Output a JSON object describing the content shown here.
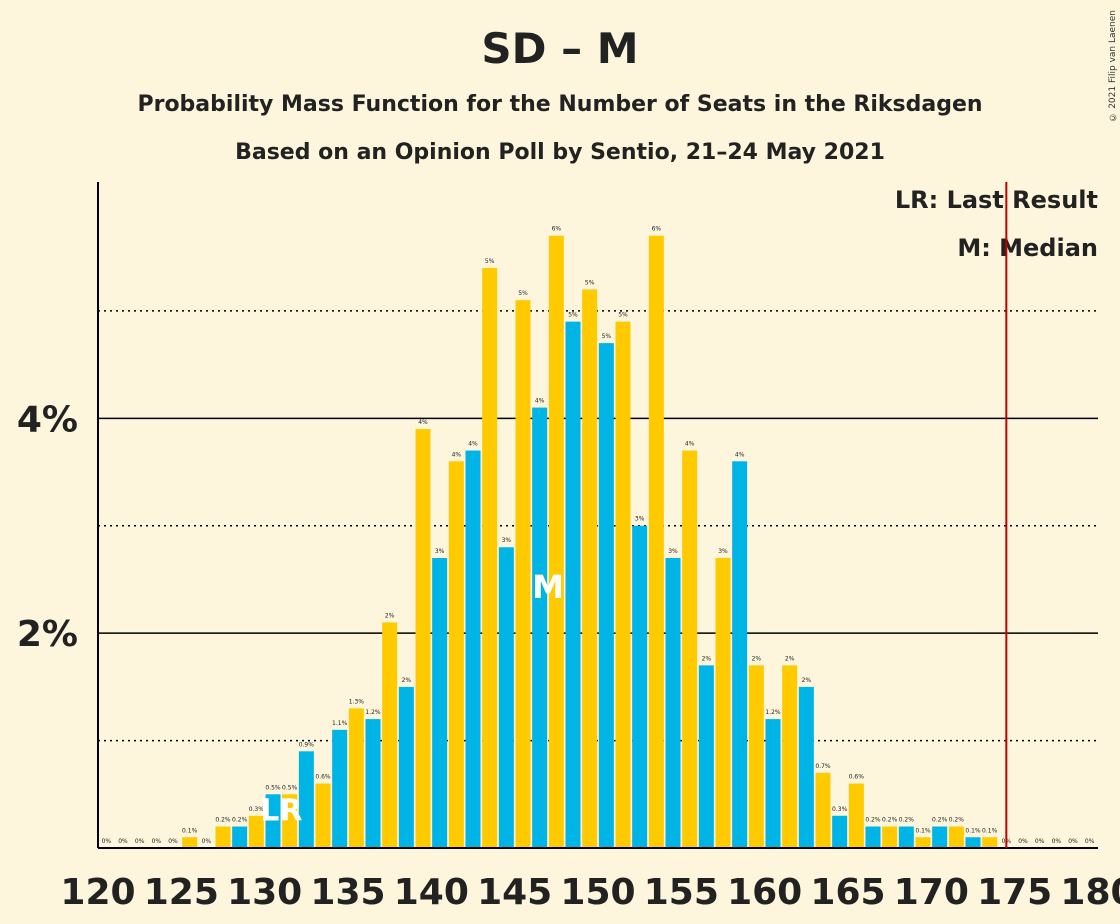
{
  "chart_data": {
    "type": "bar",
    "title": "SD – M",
    "subtitle": "Probability Mass Function for the Number of Seats in the Riksdagen",
    "subtitle2": "Based on an Opinion Poll by Sentio, 21–24 May 2021",
    "copyright": "© 2021 Filip van Laenen",
    "legend": [
      "LR: Last Result",
      "M: Median"
    ],
    "legend_position": "top-right",
    "x": [
      121,
      122,
      123,
      124,
      125,
      126,
      127,
      128,
      129,
      130,
      131,
      132,
      133,
      134,
      135,
      136,
      137,
      138,
      139,
      140,
      141,
      142,
      143,
      144,
      145,
      146,
      147,
      148,
      149,
      150,
      151,
      152,
      153,
      154,
      155,
      156,
      157,
      158,
      159,
      160,
      161,
      162,
      163,
      164,
      165,
      166,
      167,
      168,
      169,
      170,
      171,
      172,
      173,
      174,
      175,
      176,
      177,
      178,
      179,
      180
    ],
    "values": [
      0,
      0,
      0,
      0,
      0,
      0.1,
      0,
      0.2,
      0.2,
      0.3,
      0.5,
      0.5,
      0.9,
      0.6,
      1.1,
      1.3,
      1.2,
      2.1,
      1.5,
      3.9,
      2.7,
      3.6,
      3.7,
      5.4,
      2.8,
      5.1,
      4.1,
      5.7,
      4.9,
      5.2,
      4.7,
      4.9,
      3.0,
      5.7,
      2.7,
      3.7,
      1.7,
      2.7,
      3.6,
      1.7,
      1.2,
      1.7,
      1.5,
      0.7,
      0.3,
      0.6,
      0.2,
      0.2,
      0.2,
      0.1,
      0.2,
      0.2,
      0.1,
      0.1,
      0,
      0,
      0,
      0,
      0,
      0
    ],
    "labels": [
      "0%",
      "0%",
      "0%",
      "0%",
      "0%",
      "0.1%",
      "0%",
      "0.2%",
      "0.2%",
      "0.3%",
      "0.5%",
      "0.5%",
      "0.9%",
      "0.6%",
      "1.1%",
      "1.3%",
      "1.2%",
      "2%",
      "2%",
      "4%",
      "3%",
      "4%",
      "4%",
      "5%",
      "3%",
      "5%",
      "4%",
      "6%",
      "5%",
      "5%",
      "5%",
      "5%",
      "3%",
      "6%",
      "3%",
      "4%",
      "2%",
      "3%",
      "4%",
      "2%",
      "1.2%",
      "2%",
      "2%",
      "0.7%",
      "0.3%",
      "0.6%",
      "0.2%",
      "0.2%",
      "0.2%",
      "0.1%",
      "0.2%",
      "0.2%",
      "0.1%",
      "0.1%",
      "0%",
      "0%",
      "0%",
      "0%",
      "0%",
      "0%"
    ],
    "series_colors": [
      "#00b4e6",
      "#ffca00"
    ],
    "x_ticks": [
      120,
      125,
      130,
      135,
      140,
      145,
      150,
      155,
      160,
      165,
      170,
      175,
      180
    ],
    "y_ticks": [
      {
        "value": 2,
        "label": "2%"
      },
      {
        "value": 4,
        "label": "4%"
      }
    ],
    "ylim": [
      0,
      6.2
    ],
    "xlim": [
      120,
      180
    ],
    "dotted_gridlines": [
      1,
      3,
      5
    ],
    "last_result": {
      "seat": 132,
      "label": "LR"
    },
    "median": {
      "seat": 148,
      "label": "M"
    },
    "majority_line": {
      "x": 175,
      "color": "#c00000"
    }
  }
}
